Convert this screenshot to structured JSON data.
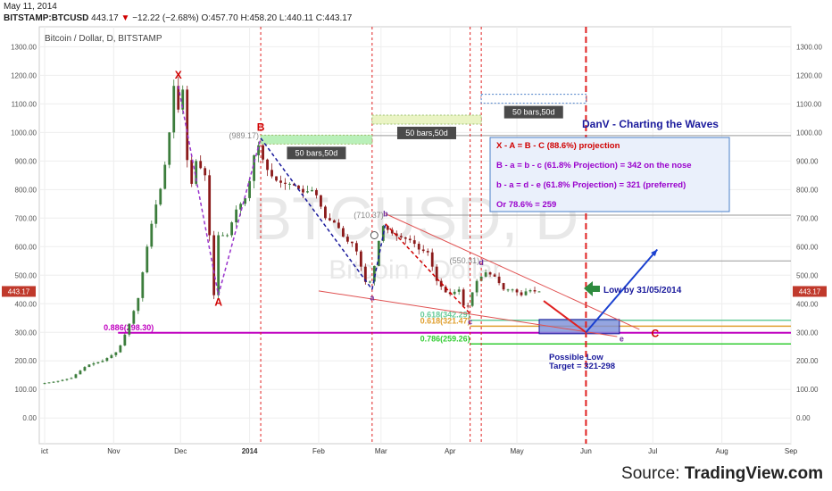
{
  "header": {
    "date": "May 11, 2014",
    "symbol": "BITSTAMP:BTCUSD",
    "price": "443.17",
    "change": "−12.22 (−2.68%)",
    "open": "O:457.70",
    "high": "H:458.20",
    "low": "L:440.11",
    "close": "C:443.17"
  },
  "footer": {
    "prefix": "Source: ",
    "brand": "TradingView.com"
  },
  "chart_data": {
    "type": "line",
    "title": "Bitcoin / Dollar, D, BITSTAMP",
    "watermark": "BTCUSD, D",
    "watermark_sub": "Bitcoin / Dollar",
    "ylim": [
      -90,
      1370
    ],
    "yticks": [
      "0.00",
      "100.00",
      "200.00",
      "300.00",
      "400.00",
      "500.00",
      "600.00",
      "700.00",
      "800.00",
      "900.00",
      "1000.00",
      "1100.00",
      "1200.00",
      "1300.00"
    ],
    "ytick_values": [
      0,
      100,
      200,
      300,
      400,
      500,
      600,
      700,
      800,
      900,
      1000,
      1100,
      1200,
      1300
    ],
    "xticks": [
      {
        "label": "ict",
        "d": "2013-10-01"
      },
      {
        "label": "Nov",
        "d": "2013-11-01"
      },
      {
        "label": "Dec",
        "d": "2013-12-01"
      },
      {
        "label": "2014",
        "d": "2014-01-01",
        "bold": true
      },
      {
        "label": "Feb",
        "d": "2014-02-01"
      },
      {
        "label": "Mar",
        "d": "2014-03-01"
      },
      {
        "label": "Apr",
        "d": "2014-04-01"
      },
      {
        "label": "May",
        "d": "2014-05-01"
      },
      {
        "label": "Jun",
        "d": "2014-06-01"
      },
      {
        "label": "Jul",
        "d": "2014-07-01"
      },
      {
        "label": "Aug",
        "d": "2014-08-01"
      },
      {
        "label": "Sep",
        "d": "2014-09-01"
      }
    ],
    "xlim": [
      "2013-10-01",
      "2014-09-01"
    ],
    "last_price_label": "443.17",
    "price_series": [
      [
        "2013-10-01",
        120
      ],
      [
        "2013-10-08",
        128
      ],
      [
        "2013-10-15",
        140
      ],
      [
        "2013-10-22",
        185
      ],
      [
        "2013-10-29",
        200
      ],
      [
        "2013-11-05",
        235
      ],
      [
        "2013-11-10",
        330
      ],
      [
        "2013-11-14",
        420
      ],
      [
        "2013-11-18",
        600
      ],
      [
        "2013-11-21",
        720
      ],
      [
        "2013-11-25",
        830
      ],
      [
        "2013-11-28",
        1000
      ],
      [
        "2013-11-30",
        1163
      ],
      [
        "2013-12-02",
        1080
      ],
      [
        "2013-12-04",
        1150
      ],
      [
        "2013-12-07",
        780
      ],
      [
        "2013-12-10",
        900
      ],
      [
        "2013-12-14",
        850
      ],
      [
        "2013-12-18",
        430
      ],
      [
        "2013-12-20",
        640
      ],
      [
        "2013-12-24",
        640
      ],
      [
        "2013-12-28",
        730
      ],
      [
        "2014-01-01",
        770
      ],
      [
        "2014-01-04",
        860
      ],
      [
        "2014-01-06",
        980
      ],
      [
        "2014-01-10",
        880
      ],
      [
        "2014-01-14",
        835
      ],
      [
        "2014-01-18",
        820
      ],
      [
        "2014-01-22",
        820
      ],
      [
        "2014-01-27",
        790
      ],
      [
        "2014-02-01",
        800
      ],
      [
        "2014-02-06",
        700
      ],
      [
        "2014-02-11",
        680
      ],
      [
        "2014-02-15",
        620
      ],
      [
        "2014-02-19",
        610
      ],
      [
        "2014-02-25",
        450
      ],
      [
        "2014-03-01",
        560
      ],
      [
        "2014-03-03",
        680
      ],
      [
        "2014-03-05",
        665
      ],
      [
        "2014-03-09",
        640
      ],
      [
        "2014-03-13",
        630
      ],
      [
        "2014-03-17",
        620
      ],
      [
        "2014-03-20",
        590
      ],
      [
        "2014-03-24",
        580
      ],
      [
        "2014-03-28",
        480
      ],
      [
        "2014-04-02",
        430
      ],
      [
        "2014-04-07",
        450
      ],
      [
        "2014-04-10",
        365
      ],
      [
        "2014-04-12",
        420
      ],
      [
        "2014-04-15",
        480
      ],
      [
        "2014-04-19",
        510
      ],
      [
        "2014-04-23",
        495
      ],
      [
        "2014-04-27",
        450
      ],
      [
        "2014-05-01",
        450
      ],
      [
        "2014-05-05",
        430
      ],
      [
        "2014-05-08",
        450
      ],
      [
        "2014-05-11",
        443.17
      ]
    ],
    "elliott_labels": [
      {
        "label": "X",
        "d": "2013-11-30",
        "v": 1163,
        "color": "#d00000"
      },
      {
        "label": "A",
        "d": "2013-12-18",
        "v": 430,
        "color": "#d00000"
      },
      {
        "label": "B",
        "d": "2014-01-06",
        "v": 980,
        "color": "#d00000"
      },
      {
        "label": "a",
        "d": "2014-02-25",
        "v": 450,
        "color": "#7030a0"
      },
      {
        "label": "b",
        "d": "2014-03-03",
        "v": 680,
        "color": "#7030a0"
      },
      {
        "label": "c",
        "d": "2014-04-10",
        "v": 365,
        "color": "#7030a0"
      },
      {
        "label": "d",
        "d": "2014-04-15",
        "v": 510,
        "color": "#7030a0"
      },
      {
        "label": "e",
        "d": "2014-06-05",
        "v": 300,
        "color": "#7030a0"
      },
      {
        "label": "C",
        "d": "2014-06-20",
        "v": 298,
        "color": "#d00000"
      }
    ],
    "price_levels": [
      {
        "label": "(989.17)",
        "v": 989.17,
        "color": "#888888"
      },
      {
        "label": "(710.37)",
        "v": 710.37,
        "color": "#888888"
      },
      {
        "label": "(550.31)",
        "v": 550.31,
        "color": "#888888"
      }
    ],
    "fib_levels": [
      {
        "label": "0.618(342.29)",
        "v": 342.29,
        "color": "#66cc99"
      },
      {
        "label": "0.618(321.47)",
        "v": 321.47,
        "color": "#e0a030"
      },
      {
        "label": "0.886(298.30)",
        "v": 298.3,
        "color": "#c000c0"
      },
      {
        "label": "0.786(259.26)",
        "v": 259.26,
        "color": "#33cc33"
      }
    ],
    "bar_spans": [
      {
        "label": "50 bars,50d",
        "from": "2014-01-06",
        "to": "2014-02-25"
      },
      {
        "label": "50 bars,50d",
        "from": "2014-02-25",
        "to": "2014-04-15"
      },
      {
        "label": "50 bars,50d",
        "from": "2014-04-15",
        "to": "2014-06-01"
      }
    ],
    "annotation_title": "DanV - Charting the Waves",
    "notes": [
      {
        "text": "X - A = B - C (88.6%) projection",
        "color": "#d00000"
      },
      {
        "text": "B - a = b - c (61.8% Projection) = 342 on the nose",
        "color": "#9900cc"
      },
      {
        "text": "b - a = d - e (61.8% Projection) = 321 (preferred)",
        "color": "#9900cc"
      },
      {
        "text": "Or 78.6% = 259",
        "color": "#9900cc"
      }
    ],
    "callouts": {
      "low_by": "Low by 31/05/2014",
      "possible_low": "Possible Low",
      "target": "Target = 321-298"
    },
    "colors": {
      "up": "#3c7d3c",
      "down": "#8b1a1a",
      "red_wave": "#d00000",
      "purple_wave": "#7030a0",
      "blue": "#1a1a9c",
      "note_bg": "#eaf0fb",
      "note_border": "#4a7fc8",
      "arrow_green": "#2e8b3e"
    }
  }
}
